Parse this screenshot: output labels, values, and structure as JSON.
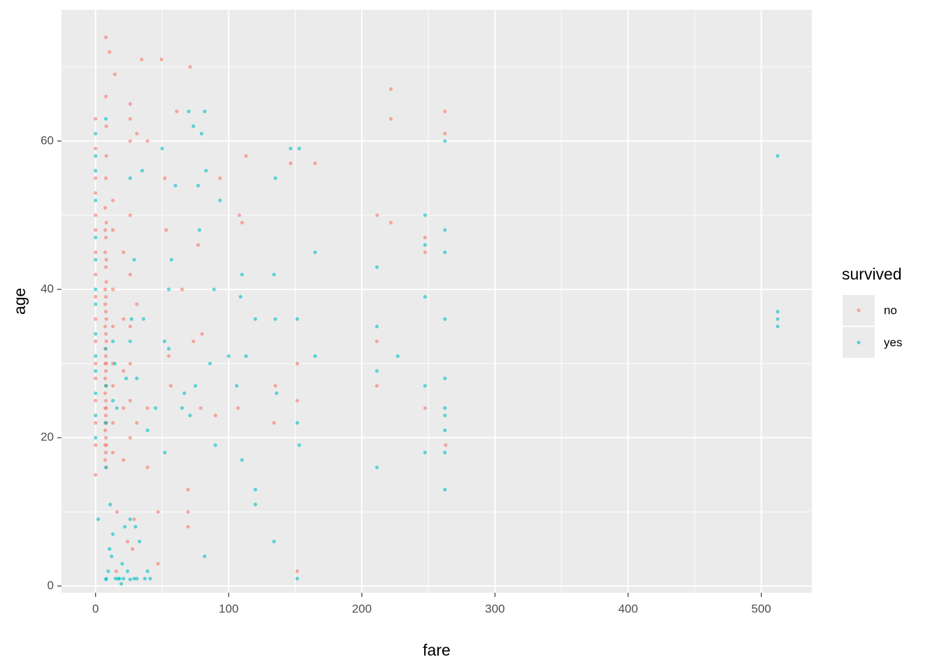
{
  "chart_data": {
    "type": "scatter",
    "xlabel": "fare",
    "ylabel": "age",
    "xlim": [
      -25.6,
      538
    ],
    "ylim": [
      -0.9,
      77.7
    ],
    "xticks": [
      0,
      100,
      200,
      300,
      400,
      500
    ],
    "yticks": [
      0,
      20,
      40,
      60
    ],
    "minor_xticks": [
      50,
      150,
      250,
      350,
      450
    ],
    "minor_yticks": [
      10,
      30,
      50,
      70
    ],
    "grid": true,
    "legend_title": "survived",
    "legend": "right",
    "opacity": 0.6,
    "series": [
      {
        "name": "no",
        "color": "#F8766D",
        "x": [
          0,
          0,
          0,
          0,
          0,
          0,
          0,
          0,
          0,
          0,
          0,
          0,
          0,
          0,
          0,
          0,
          0,
          7.25,
          7.25,
          7.25,
          7.25,
          7.25,
          7.25,
          7.25,
          7.25,
          7.25,
          7.25,
          7.25,
          7.25,
          7.25,
          7.25,
          7.25,
          7.75,
          7.75,
          7.75,
          7.75,
          7.75,
          7.75,
          7.75,
          7.75,
          7.75,
          7.75,
          7.75,
          7.75,
          7.75,
          7.75,
          7.75,
          8.05,
          8.05,
          8.05,
          8.05,
          8.05,
          8.05,
          8.05,
          8.05,
          8.05,
          8.05,
          8.05,
          8.05,
          8.05,
          10.5,
          13,
          13,
          13,
          13,
          13,
          13,
          13,
          13,
          14.5,
          15.5,
          16.1,
          21,
          21,
          21,
          21,
          21,
          24,
          26,
          26,
          26,
          26,
          26,
          26,
          26,
          26,
          26,
          27.7,
          29,
          31,
          31,
          31,
          34.6,
          39,
          39,
          39,
          46.9,
          46.9,
          49.5,
          52,
          53,
          55,
          56.5,
          61,
          65,
          69.5,
          69.5,
          69.5,
          71,
          73.5,
          77,
          79,
          80,
          90,
          93.5,
          108,
          110,
          107,
          113,
          135,
          134,
          146.5,
          151.5,
          151.5,
          151.5,
          164.9,
          211.5,
          211.3,
          211.3,
          221.8,
          221.8,
          221.8,
          247.5,
          247.5,
          247.5,
          262.4,
          262.4,
          263
        ],
        "values": [
          15,
          19,
          22,
          25,
          28,
          30,
          33,
          36,
          39,
          42,
          45,
          48,
          50,
          53,
          55,
          59,
          63,
          17,
          19,
          21,
          22,
          24,
          26,
          28,
          30,
          32,
          35,
          38,
          40,
          45,
          48,
          51,
          18,
          20,
          23,
          25,
          27,
          29,
          31,
          34,
          37,
          39,
          43,
          47,
          55,
          66,
          74,
          16,
          19,
          22,
          24,
          27,
          30,
          33,
          36,
          41,
          44,
          49,
          58,
          62,
          72,
          18,
          22,
          27,
          30,
          35,
          40,
          48,
          52,
          69,
          2,
          10,
          17,
          24,
          29,
          36,
          45,
          6,
          20,
          25,
          30,
          35,
          42,
          50,
          60,
          63,
          65,
          5,
          9,
          22,
          38,
          61,
          71,
          24,
          16,
          60,
          3,
          10,
          71,
          55,
          48,
          31,
          27,
          64,
          40,
          8,
          10,
          13,
          70,
          33,
          46,
          24,
          34,
          23,
          55,
          50,
          49,
          24,
          58,
          27,
          22,
          57,
          30,
          25,
          2,
          57,
          50,
          33,
          27,
          67,
          63,
          49,
          45,
          47,
          24,
          64,
          61,
          19
        ]
      },
      {
        "name": "yes",
        "color": "#00BFC4",
        "x": [
          2,
          0,
          0,
          0,
          0,
          0,
          0,
          0,
          0,
          0,
          0,
          0,
          0,
          0,
          0,
          7.75,
          7.75,
          7.75,
          7.75,
          7.75,
          7.75,
          8,
          9.5,
          10.5,
          11,
          12,
          13,
          13,
          13,
          14.5,
          15,
          16,
          17,
          18,
          19.3,
          20,
          21,
          22,
          23,
          24,
          26,
          26,
          26,
          26,
          27,
          29,
          29,
          30,
          31,
          31,
          33,
          35,
          36,
          37,
          39,
          39,
          41,
          45,
          50,
          51.8,
          52,
          55,
          55,
          57,
          60,
          65,
          66.6,
          70,
          71,
          73.5,
          75,
          77,
          78,
          79.6,
          81.9,
          82,
          83,
          86,
          89,
          90,
          93.5,
          100,
          106,
          108.9,
          110,
          110,
          113,
          120,
          120,
          120,
          134,
          134,
          135,
          135,
          136,
          146.5,
          151.5,
          151.5,
          151.5,
          153,
          153,
          164.9,
          164.9,
          211.3,
          211.3,
          211.3,
          211.3,
          227,
          247.5,
          247.5,
          247.5,
          247.5,
          247.5,
          262.4,
          262.4,
          262.4,
          262.4,
          262.4,
          262.4,
          262.4,
          262.4,
          262.4,
          262.4,
          512.3,
          512.3,
          512.3,
          512.3
        ],
        "values": [
          9,
          20,
          23,
          26,
          29,
          31,
          34,
          38,
          40,
          44,
          47,
          52,
          56,
          58,
          61,
          0.9,
          16,
          22,
          27,
          32,
          63,
          1,
          2,
          5,
          11,
          4,
          7,
          25,
          33,
          30,
          1,
          24,
          1,
          1,
          0.3,
          3,
          1,
          8,
          28,
          2,
          0.9,
          9,
          33,
          55,
          36,
          1,
          44,
          8,
          1,
          28,
          6,
          56,
          36,
          1,
          2,
          21,
          1,
          24,
          59,
          33,
          18,
          32,
          40,
          44,
          54,
          24,
          26,
          64,
          23,
          62,
          27,
          54,
          48,
          61,
          4,
          64,
          56,
          30,
          40,
          19,
          52,
          31,
          27,
          39,
          42,
          17,
          31,
          11,
          13,
          36,
          6,
          42,
          55,
          36,
          26,
          59,
          1,
          22,
          36,
          59,
          19,
          45,
          31,
          43,
          16,
          29,
          35,
          31,
          50,
          46,
          39,
          27,
          18,
          60,
          48,
          45,
          36,
          28,
          24,
          23,
          21,
          18,
          13,
          58,
          37,
          36,
          35
        ]
      }
    ]
  }
}
